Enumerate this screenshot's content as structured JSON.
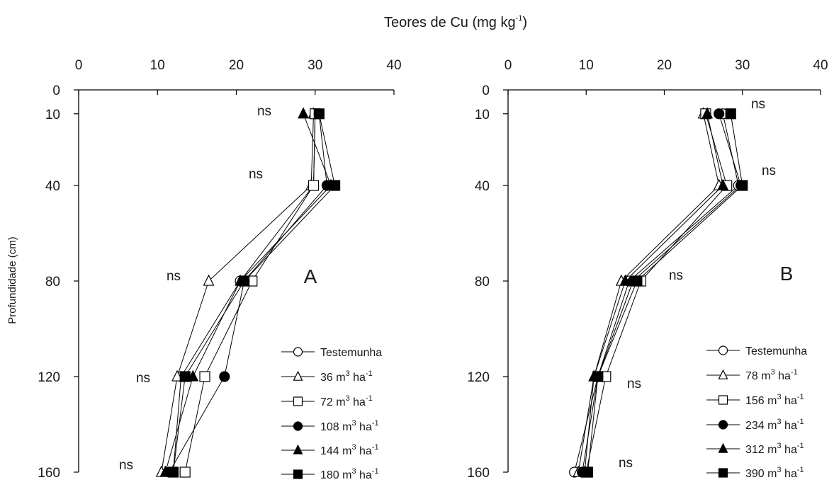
{
  "title": {
    "main": "Teores de Cu (mg kg",
    "sup": "-1",
    "close": ")"
  },
  "ylabel": "Profundidade (cm)",
  "x_ticks": [
    "0",
    "10",
    "20",
    "30",
    "40"
  ],
  "y_ticks": [
    "0",
    "10",
    "40",
    "80",
    "120",
    "160"
  ],
  "chart_data": [
    {
      "type": "line",
      "panel": "A",
      "x_axis": "Teores de Cu (mg kg-1)",
      "y_axis": "Profundidade (cm)",
      "xlim": [
        0,
        40
      ],
      "ylim": [
        0,
        160
      ],
      "y_inverted": true,
      "x_axis_position": "top",
      "depths": [
        10,
        40,
        80,
        120,
        160
      ],
      "ns_labels": [
        "ns",
        "ns",
        "ns",
        "ns",
        "ns"
      ],
      "series": [
        {
          "name": "Testemunha",
          "label": {
            "text": "Testemunha",
            "sup": "",
            "tail": ""
          },
          "marker": "circle-open",
          "values": [
            30.0,
            29.8,
            20.5,
            13.0,
            12.0
          ]
        },
        {
          "name": "36 m3 ha-1",
          "label": {
            "text": "36 m",
            "sup": "3",
            "tail": " ha",
            "sup2": "-1"
          },
          "marker": "triangle-open",
          "values": [
            29.8,
            29.5,
            16.5,
            12.5,
            10.5
          ]
        },
        {
          "name": "72 m3 ha-1",
          "label": {
            "text": "72 m",
            "sup": "3",
            "tail": " ha",
            "sup2": "-1"
          },
          "marker": "square-open",
          "values": [
            30.0,
            29.8,
            22.0,
            16.0,
            13.5
          ]
        },
        {
          "name": "108 m3 ha-1",
          "label": {
            "text": "108 m",
            "sup": "3",
            "tail": " ha",
            "sup2": "-1"
          },
          "marker": "circle-filled",
          "values": [
            30.5,
            31.5,
            21.0,
            18.5,
            11.5
          ]
        },
        {
          "name": "144 m3 ha-1",
          "label": {
            "text": "144 m",
            "sup": "3",
            "tail": " ha",
            "sup2": "-1"
          },
          "marker": "triangle-filled",
          "values": [
            28.5,
            32.0,
            20.5,
            14.5,
            11.0
          ]
        },
        {
          "name": "180 m3 ha-1",
          "label": {
            "text": "180 m",
            "sup": "3",
            "tail": " ha",
            "sup2": "-1"
          },
          "marker": "square-filled",
          "values": [
            30.5,
            32.5,
            21.0,
            13.5,
            12.0
          ]
        }
      ]
    },
    {
      "type": "line",
      "panel": "B",
      "x_axis": "Teores de Cu (mg kg-1)",
      "y_axis": "Profundidade (cm)",
      "xlim": [
        0,
        40
      ],
      "ylim": [
        0,
        160
      ],
      "y_inverted": true,
      "x_axis_position": "top",
      "depths": [
        10,
        40,
        80,
        120,
        160
      ],
      "ns_labels": [
        "ns",
        "ns",
        "ns",
        "ns",
        "ns"
      ],
      "series": [
        {
          "name": "Testemunha",
          "label": {
            "text": "Testemunha",
            "sup": "",
            "tail": ""
          },
          "marker": "circle-open",
          "values": [
            27.5,
            29.5,
            15.5,
            11.5,
            8.5
          ]
        },
        {
          "name": "78 m3 ha-1",
          "label": {
            "text": "78 m",
            "sup": "3",
            "tail": " ha",
            "sup2": "-1"
          },
          "marker": "triangle-open",
          "values": [
            25.0,
            27.0,
            14.5,
            11.0,
            9.0
          ]
        },
        {
          "name": "156 m3 ha-1",
          "label": {
            "text": "156 m",
            "sup": "3",
            "tail": " ha",
            "sup2": "-1"
          },
          "marker": "square-open",
          "values": [
            25.3,
            28.0,
            17.0,
            12.5,
            10.0
          ]
        },
        {
          "name": "234 m3 ha-1",
          "label": {
            "text": "234 m",
            "sup": "3",
            "tail": " ha",
            "sup2": "-1"
          },
          "marker": "circle-filled",
          "values": [
            27.0,
            29.8,
            16.0,
            11.5,
            9.5
          ]
        },
        {
          "name": "312 m3 ha-1",
          "label": {
            "text": "312 m",
            "sup": "3",
            "tail": " ha",
            "sup2": "-1"
          },
          "marker": "triangle-filled",
          "values": [
            25.5,
            27.5,
            15.0,
            11.0,
            9.8
          ]
        },
        {
          "name": "390 m3 ha-1",
          "label": {
            "text": "390 m",
            "sup": "3",
            "tail": " ha",
            "sup2": "-1"
          },
          "marker": "square-filled",
          "values": [
            28.5,
            30.0,
            16.5,
            11.5,
            10.2
          ]
        }
      ]
    }
  ]
}
